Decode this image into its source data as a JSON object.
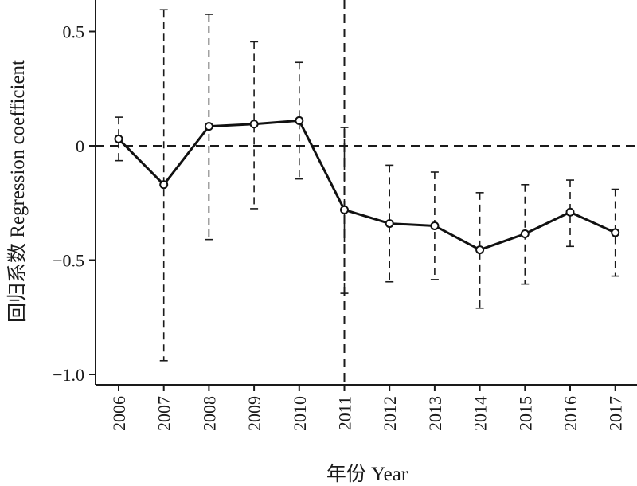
{
  "chart_data": {
    "type": "line",
    "title": "",
    "xlabel": "年份 Year",
    "ylabel": "回归系数 Regression coefficient",
    "categories": [
      "2006",
      "2007",
      "2008",
      "2009",
      "2010",
      "2011",
      "2012",
      "2013",
      "2014",
      "2015",
      "2016",
      "2017"
    ],
    "ylim": [
      -1.05,
      0.63
    ],
    "yticks": [
      0.5,
      0,
      -0.5,
      -1.0
    ],
    "ytick_labels": [
      "0.5",
      "0",
      "−0.5",
      "−1.0"
    ],
    "grid": false,
    "reference_lines": {
      "horizontal": 0,
      "vertical_at_category": "2011"
    },
    "series": [
      {
        "values": [
          0.03,
          -0.17,
          0.085,
          0.095,
          0.11,
          -0.28,
          -0.34,
          -0.35,
          -0.455,
          -0.385,
          -0.29,
          -0.38
        ],
        "ci_upper": [
          0.125,
          0.595,
          0.575,
          0.455,
          0.365,
          0.08,
          -0.085,
          -0.115,
          -0.205,
          -0.17,
          -0.15,
          -0.19
        ],
        "ci_lower": [
          -0.065,
          -0.94,
          -0.41,
          -0.275,
          -0.145,
          -0.645,
          -0.595,
          -0.585,
          -0.71,
          -0.605,
          -0.44,
          -0.57
        ]
      }
    ]
  }
}
